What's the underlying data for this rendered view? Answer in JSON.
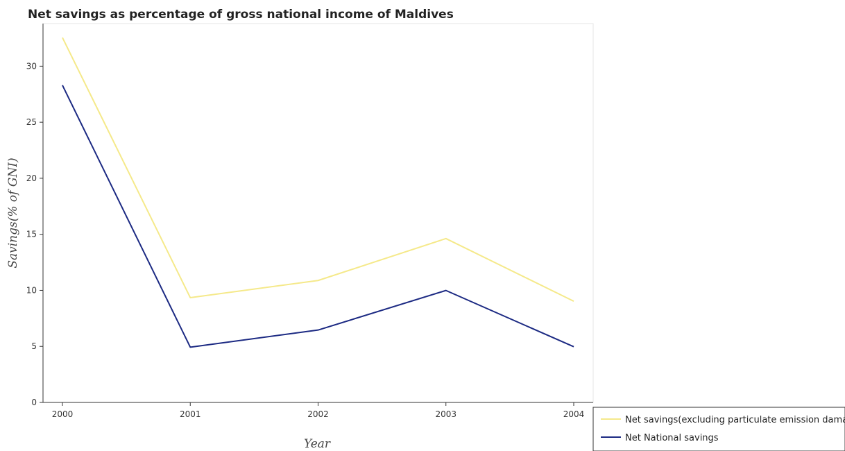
{
  "chart_data": {
    "type": "line",
    "title": "Net savings as percentage of gross national income of Maldives",
    "xlabel": "Year",
    "ylabel": "Savings(% of GNI)",
    "categories": [
      "2000",
      "2001",
      "2002",
      "2003",
      "2004"
    ],
    "ylim": [
      0,
      33.8
    ],
    "yticks": [
      0,
      5,
      10,
      15,
      20,
      25,
      30
    ],
    "grid": false,
    "legend_position": "bottom-right",
    "series": [
      {
        "name": "Net savings(excluding particulate emission damage)",
        "color": "#f5e98a",
        "values": [
          32.55,
          9.35,
          10.88,
          14.62,
          9.03
        ]
      },
      {
        "name": "Net National savings",
        "color": "#1c2a83",
        "values": [
          28.3,
          4.93,
          6.46,
          9.99,
          4.97
        ]
      }
    ]
  }
}
